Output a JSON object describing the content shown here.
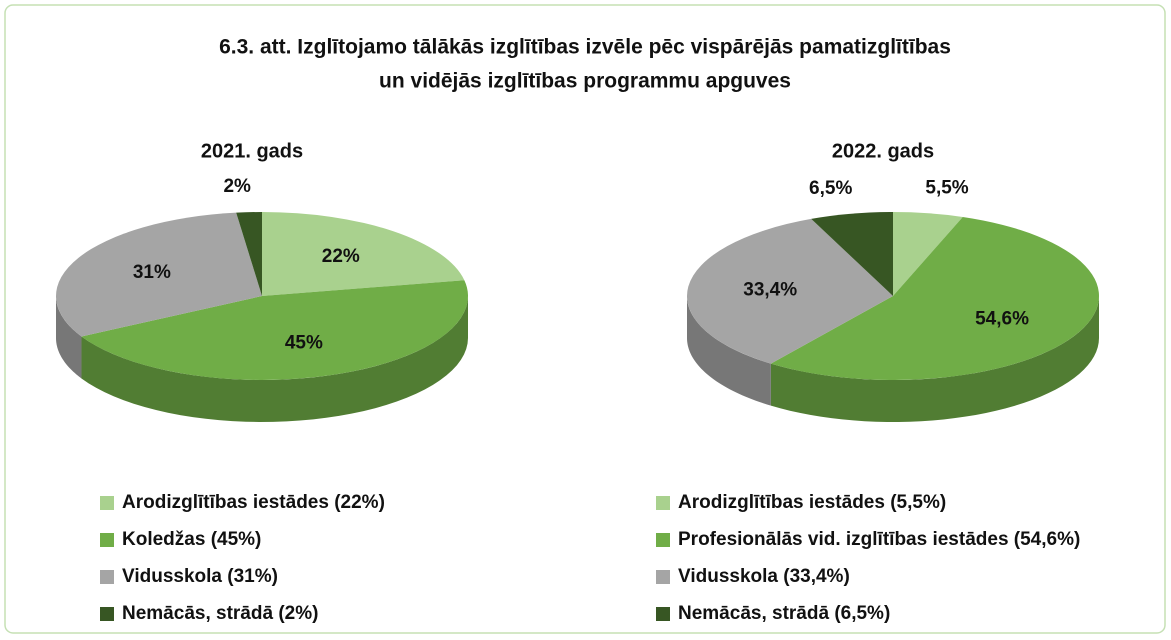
{
  "title": [
    "6.3. att. Izglītojamo tālākās izglītības izvēle pēc vispārējās pamatizglītības",
    "un vidējās izglītības programmu apguves"
  ],
  "chart_data": [
    {
      "type": "pie",
      "title": "2021. gads",
      "categories": [
        "Arodizglītības iestādes (22%)",
        "Koledžas (45%)",
        "Vidusskola (31%)",
        "Nemācās, strādā (2%)"
      ],
      "values": [
        22,
        45,
        31,
        2
      ],
      "value_labels": [
        "22%",
        "45%",
        "31%",
        "2%"
      ],
      "colors": [
        "#a9d18e",
        "#70ad47",
        "#a5a5a5",
        "#375623"
      ]
    },
    {
      "type": "pie",
      "title": "2022. gads",
      "categories": [
        "Arodizglītības iestādes (5,5%)",
        "Profesionālās vid. izglītības iestādes (54,6%)",
        "Vidusskola (33,4%)",
        "Nemācās, strādā (6,5%)"
      ],
      "values": [
        5.5,
        54.6,
        33.4,
        6.5
      ],
      "value_labels": [
        "5,5%",
        "54,6%",
        "33,4%",
        "6,5%"
      ],
      "colors": [
        "#a9d18e",
        "#70ad47",
        "#a5a5a5",
        "#375623"
      ]
    }
  ]
}
